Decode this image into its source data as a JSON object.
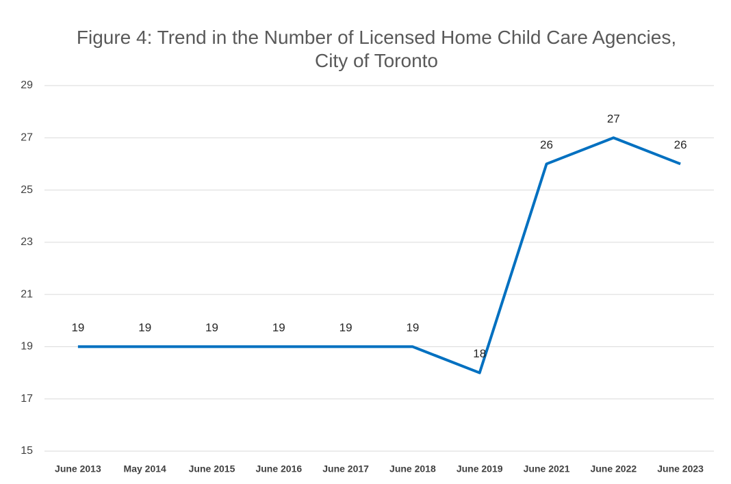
{
  "chart_data": {
    "type": "line",
    "title": "Figure 4: Trend in the Number of Licensed Home Child Care Agencies, City of Toronto",
    "categories": [
      "June 2013",
      "May 2014",
      "June 2015",
      "June 2016",
      "June 2017",
      "June 2018",
      "June 2019",
      "June 2021",
      "June 2022",
      "June 2023"
    ],
    "series": [
      {
        "name": "Licensed Home Child Care Agencies",
        "color": "#0070c0",
        "values": [
          19,
          19,
          19,
          19,
          19,
          19,
          18,
          26,
          27,
          26
        ]
      }
    ],
    "ylim": [
      15,
      29
    ],
    "yticks": [
      15,
      17,
      19,
      21,
      23,
      25,
      27,
      29
    ],
    "grid": true
  }
}
